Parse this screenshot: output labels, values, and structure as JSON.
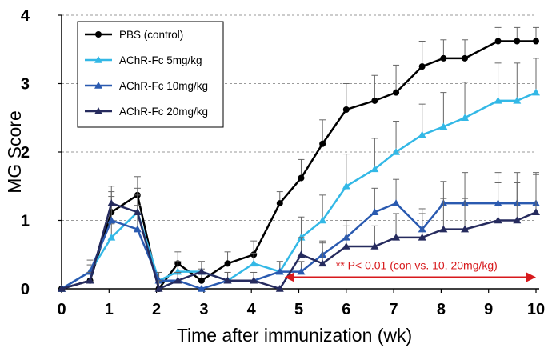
{
  "chart_data": {
    "type": "line",
    "xlabel": "Time after immunization (wk)",
    "ylabel": "MG Score",
    "xlim": [
      0,
      10
    ],
    "ylim": [
      0,
      4
    ],
    "x_ticks": [
      "0",
      "1",
      "2",
      "3",
      "4",
      "5",
      "6",
      "7",
      "8",
      "9",
      "10"
    ],
    "y_ticks": [
      "0",
      "1",
      "2",
      "3",
      "4"
    ],
    "grid": "horizontal dashed",
    "legend_position": "top-left",
    "series": [
      {
        "name": "PBS (control)",
        "color": "#000000",
        "marker": "circle",
        "x": [
          0,
          0.6,
          1.05,
          1.6,
          2.05,
          2.45,
          2.95,
          3.5,
          4.05,
          4.6,
          5.05,
          5.5,
          6.0,
          6.6,
          7.05,
          7.6,
          8.05,
          8.5,
          9.2,
          9.6,
          10.0
        ],
        "y": [
          0,
          0.12,
          1.12,
          1.37,
          0.0,
          0.37,
          0.12,
          0.37,
          0.5,
          1.25,
          1.62,
          2.12,
          2.62,
          2.75,
          2.87,
          3.25,
          3.37,
          3.37,
          3.62,
          3.62,
          3.62
        ],
        "err": [
          0,
          0.12,
          0.3,
          0.27,
          0.12,
          0.17,
          0.17,
          0.17,
          0.2,
          0.17,
          0.27,
          0.35,
          0.38,
          0.37,
          0.4,
          0.37,
          0.27,
          0.27,
          0.2,
          0.2,
          0.2
        ]
      },
      {
        "name": "AChR-Fc 5mg/kg",
        "color": "#33b8e6",
        "marker": "triangle",
        "x": [
          0,
          0.6,
          1.05,
          1.6,
          2.05,
          2.45,
          2.95,
          3.5,
          4.05,
          4.6,
          5.05,
          5.5,
          6.0,
          6.6,
          7.05,
          7.6,
          8.05,
          8.5,
          9.2,
          9.6,
          10.0
        ],
        "y": [
          0,
          0.25,
          0.75,
          1.12,
          0.12,
          0.25,
          0.25,
          0.12,
          0.37,
          0.25,
          0.75,
          1.0,
          1.5,
          1.75,
          2.0,
          2.25,
          2.37,
          2.5,
          2.75,
          2.75,
          2.87
        ],
        "err": [
          0,
          0.1,
          0.2,
          0.25,
          0.12,
          0.15,
          0.15,
          0.12,
          0.15,
          0.15,
          0.3,
          0.37,
          0.47,
          0.45,
          0.45,
          0.45,
          0.5,
          0.52,
          0.55,
          0.55,
          0.5
        ]
      },
      {
        "name": "AChR-Fc 10mg/kg",
        "color": "#2a5ab0",
        "marker": "triangle",
        "x": [
          0,
          0.6,
          1.05,
          1.6,
          2.05,
          2.45,
          2.95,
          3.5,
          4.05,
          4.6,
          5.05,
          5.5,
          6.0,
          6.6,
          7.05,
          7.6,
          8.05,
          8.5,
          9.2,
          9.6,
          10.0
        ],
        "y": [
          0,
          0.25,
          1.0,
          0.87,
          0.12,
          0.12,
          0.0,
          0.12,
          0.12,
          0.25,
          0.25,
          0.5,
          0.75,
          1.12,
          1.25,
          0.87,
          1.25,
          1.25,
          1.25,
          1.25,
          1.25
        ],
        "err": [
          0,
          0.17,
          0.35,
          0.35,
          0.12,
          0.12,
          0.0,
          0.12,
          0.12,
          0.15,
          0.15,
          0.2,
          0.25,
          0.35,
          0.35,
          0.3,
          0.32,
          0.45,
          0.45,
          0.45,
          0.45
        ]
      },
      {
        "name": "AChR-Fc 20mg/kg",
        "color": "#262b5e",
        "marker": "triangle",
        "x": [
          0,
          0.6,
          1.05,
          1.6,
          2.05,
          2.45,
          2.95,
          3.5,
          4.05,
          4.6,
          5.05,
          5.5,
          6.0,
          6.6,
          7.05,
          7.6,
          8.05,
          8.5,
          9.2,
          9.6,
          10.0
        ],
        "y": [
          0,
          0.12,
          1.25,
          1.12,
          0.0,
          0.12,
          0.25,
          0.12,
          0.12,
          0.0,
          0.5,
          0.37,
          0.62,
          0.62,
          0.75,
          0.75,
          0.87,
          0.87,
          1.0,
          1.0,
          1.12
        ],
        "err": [
          0,
          0.12,
          0.25,
          0.35,
          0.12,
          0.12,
          0.15,
          0.12,
          0.12,
          0.0,
          0.25,
          0.3,
          0.3,
          0.3,
          0.35,
          0.35,
          0.45,
          0.45,
          0.55,
          0.55,
          0.55
        ]
      }
    ],
    "annotation": {
      "text": "** P< 0.01 (con vs. 10, 20mg/kg)",
      "x_start": 4.7,
      "x_end": 10.0,
      "y": 0.17,
      "color": "#d7191c"
    }
  }
}
